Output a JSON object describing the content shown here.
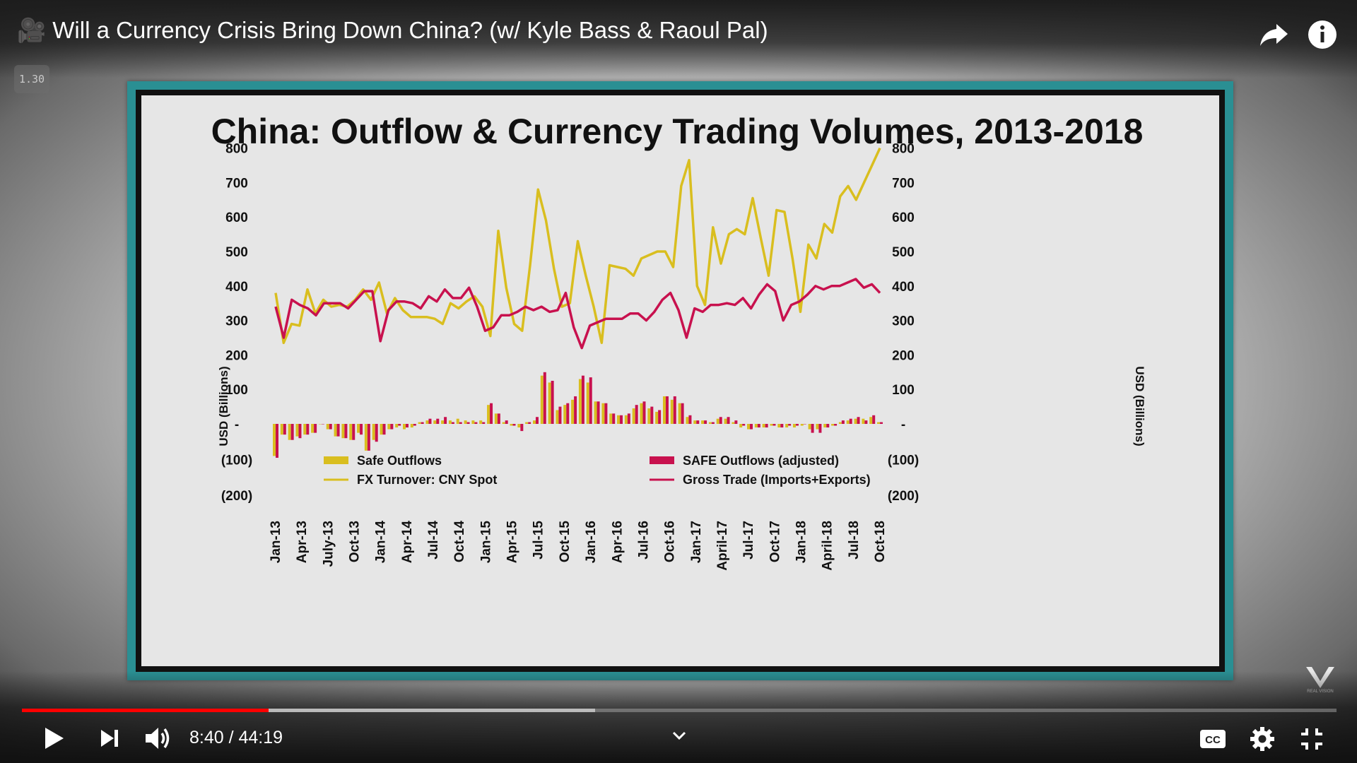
{
  "video": {
    "title": "🎥 Will a Currency Crisis Bring Down China? (w/ Kyle Bass & Raoul Pal)",
    "playback_speed": "1.30"
  },
  "controls": {
    "time_display": "8:40 / 44:19",
    "progress_fraction": 0.1876,
    "buffer_fraction": 0.436
  },
  "icons": {
    "share": "share-icon",
    "info": "info-icon",
    "play": "play-icon",
    "next": "next-icon",
    "volume": "volume-icon",
    "chevron": "chevron-down-icon",
    "captions": "captions-icon",
    "settings": "gear-icon",
    "exit_fullscreen": "exit-fullscreen-icon",
    "watermark": "real-vision-logo"
  },
  "colors": {
    "accent": "#ff0000",
    "frame": "#2a8f93",
    "series_yellow": "#d9be1f",
    "series_red": "#c8114e"
  },
  "chart_data": {
    "type": "line",
    "title": "China: Outflow & Currency Trading Volumes, 2013-2018",
    "ylabel_left": "USD (Billions)",
    "ylabel_right": "USD (Billions)",
    "ylim": [
      -200,
      800
    ],
    "y_ticks": [
      {
        "value": 800,
        "label": "800"
      },
      {
        "value": 700,
        "label": "700"
      },
      {
        "value": 600,
        "label": "600"
      },
      {
        "value": 500,
        "label": "500"
      },
      {
        "value": 400,
        "label": "400"
      },
      {
        "value": 300,
        "label": "300"
      },
      {
        "value": 200,
        "label": "200"
      },
      {
        "value": 100,
        "label": "100"
      },
      {
        "value": 0,
        "label": "-"
      },
      {
        "value": -100,
        "label": "(100)"
      },
      {
        "value": -200,
        "label": "(200)"
      }
    ],
    "x_tick_labels": [
      "Jan-13",
      "Apr-13",
      "July-13",
      "Oct-13",
      "Jan-14",
      "Apr-14",
      "Jul-14",
      "Oct-14",
      "Jan-15",
      "Apr-15",
      "Jul-15",
      "Oct-15",
      "Jan-16",
      "Apr-16",
      "Jul-16",
      "Oct-16",
      "Jan-17",
      "April-17",
      "Jul-17",
      "Oct-17",
      "Jan-18",
      "April-18",
      "Jul-18",
      "Oct-18"
    ],
    "legend": [
      {
        "label": "Safe Outflows",
        "kind": "bar",
        "color": "#d9be1f"
      },
      {
        "label": "FX Turnover: CNY Spot",
        "kind": "line",
        "color": "#d9be1f"
      },
      {
        "label": "SAFE Outflows (adjusted)",
        "kind": "bar",
        "color": "#c8114e"
      },
      {
        "label": "Gross Trade (Imports+Exports)",
        "kind": "line",
        "color": "#c8114e"
      }
    ],
    "series": [
      {
        "name": "FX Turnover: CNY Spot",
        "kind": "line",
        "values": [
          380,
          235,
          290,
          285,
          390,
          320,
          360,
          340,
          345,
          340,
          360,
          390,
          360,
          410,
          320,
          365,
          330,
          310,
          310,
          310,
          305,
          290,
          350,
          335,
          355,
          370,
          340,
          255,
          560,
          395,
          290,
          270,
          460,
          680,
          590,
          450,
          340,
          350,
          530,
          430,
          340,
          235,
          460,
          455,
          450,
          430,
          480,
          490,
          500,
          500,
          455,
          690,
          765,
          400,
          345,
          570,
          465,
          550,
          565,
          550,
          655,
          540,
          430,
          620,
          615,
          480,
          325,
          520,
          480,
          580,
          555,
          660,
          690,
          650,
          700,
          750,
          800
        ]
      },
      {
        "name": "Gross Trade (Imports+Exports)",
        "kind": "line",
        "values": [
          340,
          250,
          360,
          345,
          335,
          315,
          350,
          350,
          350,
          335,
          360,
          385,
          385,
          240,
          330,
          355,
          355,
          350,
          335,
          370,
          355,
          390,
          365,
          365,
          395,
          340,
          270,
          280,
          315,
          315,
          325,
          340,
          330,
          340,
          325,
          330,
          380,
          280,
          220,
          285,
          295,
          305,
          305,
          305,
          320,
          320,
          300,
          325,
          360,
          380,
          330,
          250,
          335,
          325,
          345,
          345,
          350,
          345,
          365,
          335,
          375,
          405,
          385,
          300,
          345,
          355,
          375,
          400,
          390,
          400,
          400,
          410,
          420,
          395,
          405,
          380
        ]
      },
      {
        "name": "Safe Outflows",
        "kind": "bar",
        "values": [
          -90,
          -30,
          -45,
          -35,
          -30,
          -25,
          0,
          -15,
          -35,
          -40,
          -45,
          -25,
          -75,
          -45,
          -30,
          -15,
          -10,
          -15,
          -10,
          5,
          10,
          10,
          10,
          10,
          15,
          10,
          10,
          10,
          55,
          30,
          5,
          -5,
          -10,
          5,
          10,
          140,
          120,
          40,
          55,
          70,
          130,
          120,
          65,
          60,
          30,
          25,
          25,
          45,
          60,
          45,
          35,
          80,
          70,
          60,
          20,
          10,
          10,
          5,
          15,
          15,
          5,
          -10,
          -15,
          -10,
          -10,
          -5,
          -10,
          -10,
          -10,
          -5,
          -15,
          -15,
          -10,
          -5,
          5,
          10,
          15,
          15,
          20,
          5
        ]
      },
      {
        "name": "SAFE Outflows (adjusted)",
        "kind": "bar",
        "values": [
          -95,
          -30,
          -45,
          -40,
          -30,
          -25,
          0,
          -15,
          -35,
          -40,
          -45,
          -30,
          -75,
          -50,
          -30,
          -15,
          -5,
          -10,
          -5,
          5,
          15,
          15,
          20,
          5,
          5,
          5,
          5,
          5,
          60,
          30,
          10,
          -5,
          -20,
          5,
          20,
          150,
          125,
          50,
          60,
          80,
          140,
          135,
          65,
          60,
          30,
          25,
          30,
          55,
          65,
          50,
          40,
          80,
          80,
          60,
          25,
          10,
          10,
          5,
          20,
          20,
          10,
          -5,
          -15,
          -10,
          -10,
          -5,
          -10,
          -5,
          -5,
          0,
          -25,
          -25,
          -10,
          -5,
          10,
          15,
          20,
          10,
          25,
          5
        ]
      }
    ]
  }
}
